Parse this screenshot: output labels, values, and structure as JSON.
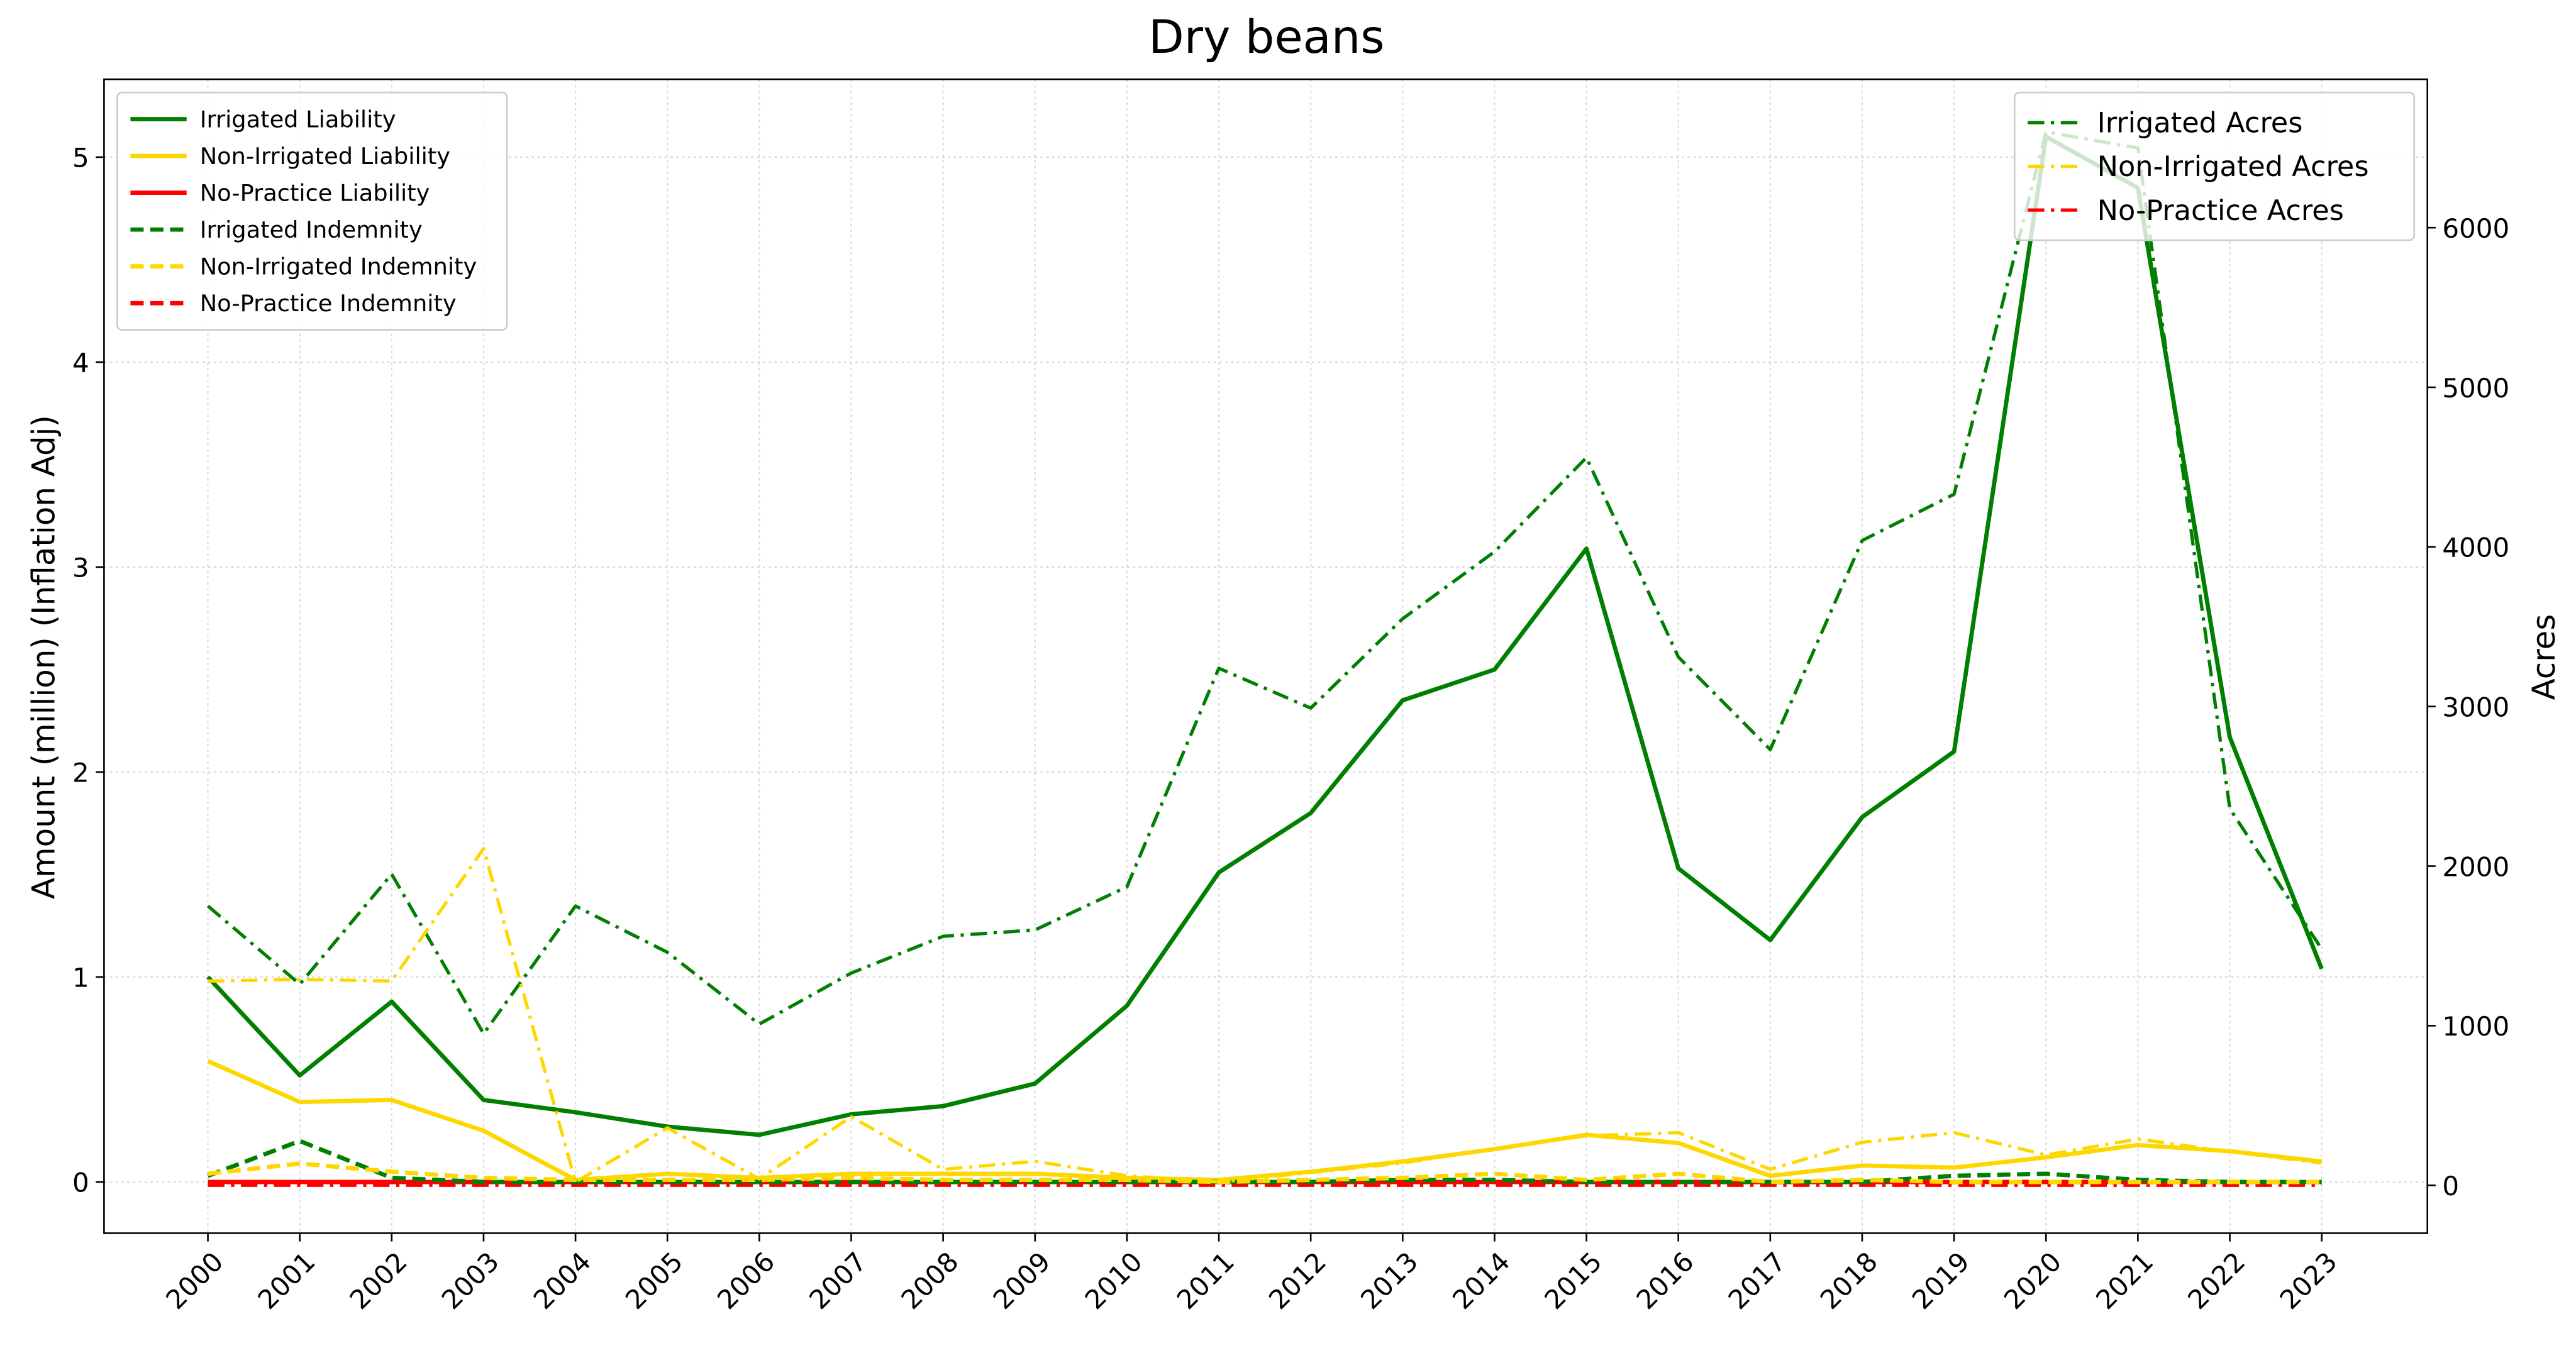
{
  "chart_data": {
    "type": "line",
    "title": "Dry beans",
    "ylabel": "Amount (million) (Inflation Adj)",
    "y2label": "Acres",
    "x": [
      2000,
      2001,
      2002,
      2003,
      2004,
      2005,
      2006,
      2007,
      2008,
      2009,
      2010,
      2011,
      2012,
      2013,
      2014,
      2015,
      2016,
      2017,
      2018,
      2019,
      2020,
      2021,
      2022,
      2023
    ],
    "xticks": [
      2000,
      2001,
      2002,
      2003,
      2004,
      2005,
      2006,
      2007,
      2008,
      2009,
      2010,
      2011,
      2012,
      2013,
      2014,
      2015,
      2016,
      2017,
      2018,
      2019,
      2020,
      2021,
      2022,
      2023
    ],
    "xlim": [
      1998.87,
      2024.15
    ],
    "ylim": [
      -0.25,
      5.38
    ],
    "yticks": [
      0,
      1,
      2,
      3,
      4,
      5
    ],
    "y2lim": [
      -300,
      6930
    ],
    "y2ticks": [
      0,
      1000,
      2000,
      3000,
      4000,
      5000,
      6000
    ],
    "grid": true,
    "legend": "upper left",
    "legend2": "upper right",
    "series": [
      {
        "name": "Irrigated Liability",
        "color": "#007f00",
        "style": "solid",
        "axis": "y",
        "values": [
          1.0,
          0.52,
          0.88,
          0.4,
          0.34,
          0.27,
          0.23,
          0.33,
          0.37,
          0.48,
          0.86,
          1.51,
          1.8,
          2.35,
          2.5,
          3.09,
          1.53,
          1.18,
          1.78,
          2.1,
          5.1,
          4.85,
          2.17,
          1.04
        ]
      },
      {
        "name": "Non-Irrigated Liability",
        "color": "#ffd700",
        "style": "solid",
        "axis": "y",
        "values": [
          0.59,
          0.39,
          0.4,
          0.25,
          0.01,
          0.04,
          0.02,
          0.04,
          0.04,
          0.04,
          0.02,
          0.01,
          0.05,
          0.1,
          0.16,
          0.23,
          0.19,
          0.03,
          0.08,
          0.07,
          0.12,
          0.18,
          0.15,
          0.1
        ]
      },
      {
        "name": "No-Practice Liability",
        "color": "#ff0000",
        "style": "solid",
        "axis": "y",
        "values": [
          0,
          0,
          0,
          0,
          0,
          0,
          0,
          0,
          0,
          0,
          0,
          0,
          0,
          0,
          0,
          0,
          0,
          0,
          0,
          0,
          0,
          0,
          0,
          0
        ]
      },
      {
        "name": "Irrigated Indemnity",
        "color": "#007f00",
        "style": "dashed",
        "axis": "y",
        "values": [
          0.03,
          0.2,
          0.02,
          0,
          0,
          0,
          0,
          0,
          0,
          0,
          0,
          0,
          0,
          0.01,
          0.01,
          0,
          0,
          0,
          0,
          0.03,
          0.04,
          0.01,
          0,
          0
        ]
      },
      {
        "name": "Non-Irrigated Indemnity",
        "color": "#ffd700",
        "style": "dashed",
        "axis": "y",
        "values": [
          0.04,
          0.09,
          0.05,
          0.02,
          0.01,
          0.01,
          0.01,
          0.02,
          0.01,
          0.01,
          0.01,
          0,
          0.01,
          0.02,
          0.04,
          0.01,
          0.04,
          0,
          0.01,
          0,
          0,
          0,
          0,
          0
        ]
      },
      {
        "name": "No-Practice Indemnity",
        "color": "#ff0000",
        "style": "dashed",
        "axis": "y",
        "values": [
          0,
          0,
          0,
          0,
          0,
          0,
          0,
          0,
          0,
          0,
          0,
          0,
          0,
          0,
          0,
          0,
          0,
          0,
          0,
          0,
          0,
          0,
          0,
          0
        ]
      },
      {
        "name": "Irrigated Acres",
        "color": "#007f00",
        "style": "dashdot",
        "axis": "y2",
        "values": [
          1750,
          1260,
          1950,
          950,
          1750,
          1460,
          1010,
          1330,
          1560,
          1600,
          1870,
          3240,
          2990,
          3550,
          3970,
          4560,
          3310,
          2730,
          4040,
          4330,
          6600,
          6500,
          2360,
          1480
        ]
      },
      {
        "name": "Non-Irrigated Acres",
        "color": "#ffd700",
        "style": "dashdot",
        "axis": "y2",
        "values": [
          1280,
          1290,
          1280,
          2110,
          20,
          360,
          40,
          430,
          100,
          150,
          60,
          20,
          80,
          140,
          230,
          310,
          330,
          100,
          270,
          330,
          190,
          290,
          210,
          140
        ]
      },
      {
        "name": "No-Practice Acres",
        "color": "#ff0000",
        "style": "dashdot",
        "axis": "y2",
        "values": [
          0,
          0,
          0,
          0,
          0,
          0,
          0,
          0,
          0,
          0,
          0,
          0,
          0,
          0,
          0,
          0,
          0,
          0,
          0,
          0,
          0,
          0,
          0,
          0
        ]
      }
    ]
  }
}
